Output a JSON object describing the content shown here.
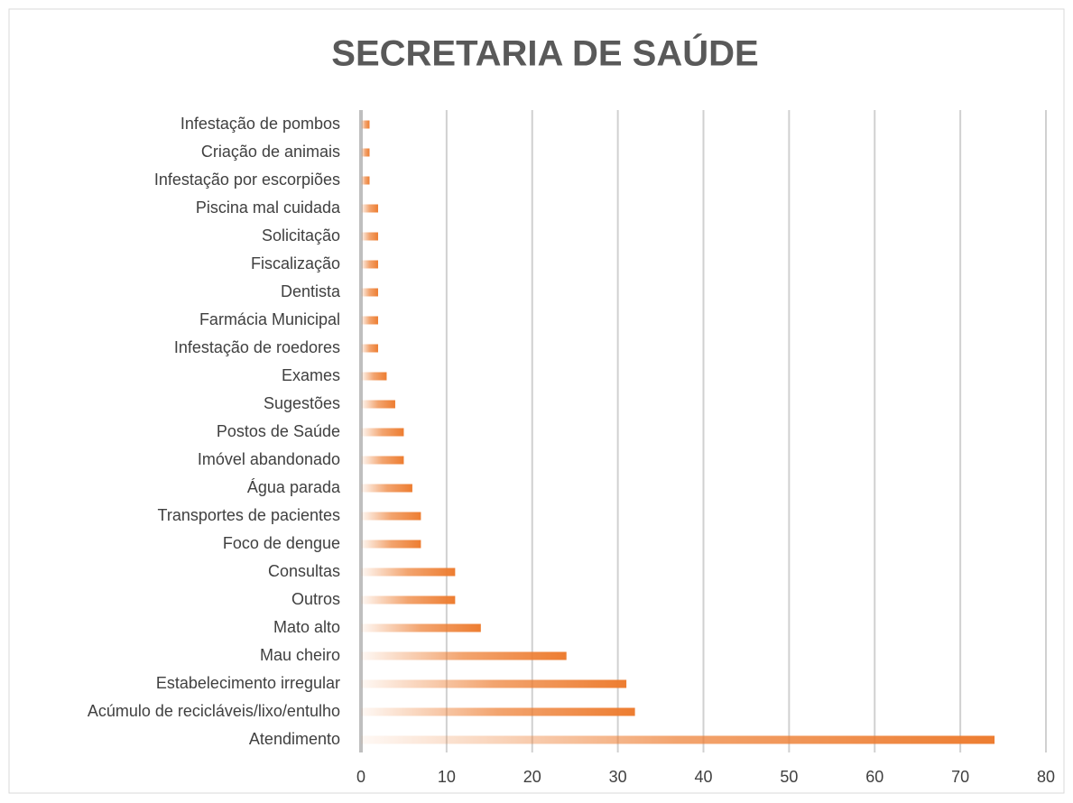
{
  "chart_data": {
    "type": "barh",
    "title": "SECRETARIA DE SAÚDE",
    "categories": [
      "Infestação de pombos",
      "Criação de animais",
      "Infestação por escorpiões",
      "Piscina mal cuidada",
      "Solicitação",
      "Fiscalização",
      "Dentista",
      "Farmácia Municipal",
      "Infestação de roedores",
      "Exames",
      "Sugestões",
      "Postos de Saúde",
      "Imóvel abandonado",
      "Água parada",
      "Transportes de pacientes",
      "Foco de dengue",
      "Consultas",
      "Outros",
      "Mato alto",
      "Mau cheiro",
      "Estabelecimento irregular",
      "Acúmulo de recicláveis/lixo/entulho",
      "Atendimento"
    ],
    "values": [
      1,
      1,
      1,
      2,
      2,
      2,
      2,
      2,
      2,
      3,
      4,
      5,
      5,
      6,
      7,
      7,
      11,
      11,
      14,
      24,
      31,
      32,
      74
    ],
    "color": "#ed7d31",
    "xlim": [
      0,
      80
    ],
    "xticks": [
      0,
      10,
      20,
      30,
      40,
      50,
      60,
      70,
      80
    ],
    "grid": true
  }
}
